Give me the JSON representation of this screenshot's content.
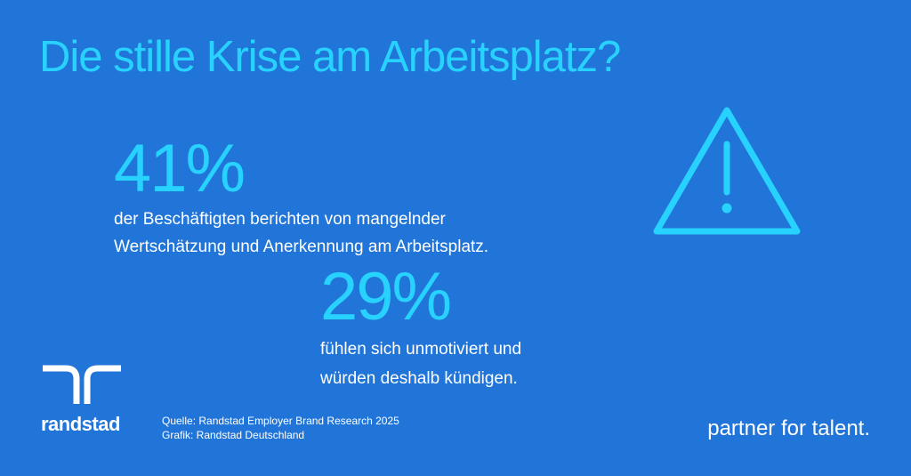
{
  "title": "Die stille Krise am Arbeitsplatz?",
  "stats": [
    {
      "value": "41%",
      "line1": "der Beschäftigten berichten von mangelnder",
      "line2": "Wertschätzung und Anerkennung am Arbeitsplatz."
    },
    {
      "value": "29%",
      "line1": "fühlen sich unmotiviert und",
      "line2": "würden deshalb kündigen."
    }
  ],
  "icon": {
    "name": "warning-triangle-icon",
    "color": "#28d2ff"
  },
  "logo": {
    "text": "randstad",
    "icon": "randstad-logo-icon"
  },
  "source": {
    "line1": "Quelle: Randstad Employer Brand Research 2025",
    "line2": "Grafik: Randstad Deutschland"
  },
  "tagline": "partner for talent.",
  "colors": {
    "background": "#2175d9",
    "accent": "#28d2ff",
    "text": "#ffffff"
  }
}
